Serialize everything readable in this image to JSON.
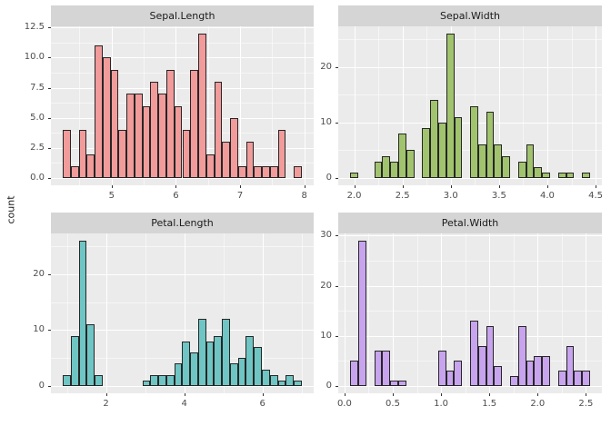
{
  "figure": {
    "y_axis_title": "count",
    "background": "#FFFFFF",
    "panel_background": "#EBEBEB",
    "strip_background": "#D5D5D5",
    "strip_text_color": "#1A1A1A",
    "grid_major_color": "#FFFFFF",
    "grid_minor_color": "rgba(255,255,255,0.55)",
    "tick_label_color": "#4D4D4D",
    "tick_mark_color": "#333333",
    "bar_border_color": "#262626",
    "legend": "none",
    "facet_layout": "2x2"
  },
  "chart_data": [
    {
      "type": "bar",
      "subtype": "histogram",
      "title": "Sepal.Length",
      "fill": "#F19B9B",
      "bin_start": 4.24,
      "bin_width": 0.124,
      "counts": [
        4,
        1,
        4,
        2,
        11,
        10,
        9,
        4,
        7,
        7,
        6,
        8,
        7,
        9,
        6,
        4,
        9,
        12,
        2,
        8,
        3,
        5,
        1,
        3,
        1,
        1,
        1,
        4,
        0,
        1
      ],
      "x_range": [
        4.054,
        8.146
      ],
      "x_ticks": [
        {
          "v": 5,
          "label": "5"
        },
        {
          "v": 6,
          "label": "6"
        },
        {
          "v": 7,
          "label": "7"
        },
        {
          "v": 8,
          "label": "8"
        }
      ],
      "x_minor": [
        4.5,
        5.5,
        6.5,
        7.5
      ],
      "y_range": [
        -0.6,
        12.6
      ],
      "y_ticks": [
        {
          "v": 0,
          "label": "0.0"
        },
        {
          "v": 2.5,
          "label": "2.5"
        },
        {
          "v": 5,
          "label": "5.0"
        },
        {
          "v": 7.5,
          "label": "7.5"
        },
        {
          "v": 10,
          "label": "10.0"
        },
        {
          "v": 12.5,
          "label": "12.5"
        }
      ],
      "y_minor": [
        1.25,
        3.75,
        6.25,
        8.75,
        11.25
      ]
    },
    {
      "type": "bar",
      "subtype": "histogram",
      "title": "Sepal.Width",
      "fill": "#A1C36E",
      "bin_start": 1.959,
      "bin_width": 0.0828,
      "counts": [
        1,
        0,
        0,
        3,
        4,
        3,
        8,
        5,
        0,
        9,
        14,
        10,
        26,
        11,
        0,
        13,
        6,
        12,
        6,
        4,
        0,
        3,
        6,
        2,
        1,
        0,
        1,
        1,
        0,
        1
      ],
      "x_range": [
        1.835,
        4.565
      ],
      "x_ticks": [
        {
          "v": 2.0,
          "label": "2.0"
        },
        {
          "v": 2.5,
          "label": "2.5"
        },
        {
          "v": 3.0,
          "label": "3.0"
        },
        {
          "v": 3.5,
          "label": "3.5"
        },
        {
          "v": 4.0,
          "label": "4.0"
        },
        {
          "v": 4.5,
          "label": "4.5"
        }
      ],
      "x_minor": [
        2.25,
        2.75,
        3.25,
        3.75,
        4.25
      ],
      "y_range": [
        -1.3,
        27.3
      ],
      "y_ticks": [
        {
          "v": 0,
          "label": "0"
        },
        {
          "v": 10,
          "label": "10"
        },
        {
          "v": 20,
          "label": "20"
        }
      ],
      "y_minor": [
        5,
        15,
        25
      ]
    },
    {
      "type": "bar",
      "subtype": "histogram",
      "title": "Petal.Length",
      "fill": "#6FC5C3",
      "bin_start": 0.898,
      "bin_width": 0.2034,
      "counts": [
        2,
        9,
        26,
        11,
        2,
        0,
        0,
        0,
        0,
        0,
        1,
        2,
        2,
        2,
        4,
        8,
        6,
        12,
        8,
        9,
        12,
        4,
        5,
        9,
        7,
        3,
        2,
        1,
        2,
        1
      ],
      "x_range": [
        0.593,
        7.307
      ],
      "x_ticks": [
        {
          "v": 2,
          "label": "2"
        },
        {
          "v": 4,
          "label": "4"
        },
        {
          "v": 6,
          "label": "6"
        }
      ],
      "x_minor": [
        1,
        3,
        5,
        7
      ],
      "y_range": [
        -1.3,
        27.3
      ],
      "y_ticks": [
        {
          "v": 0,
          "label": "0"
        },
        {
          "v": 10,
          "label": "10"
        },
        {
          "v": 20,
          "label": "20"
        }
      ],
      "y_minor": [
        5,
        15,
        25
      ]
    },
    {
      "type": "bar",
      "subtype": "histogram",
      "title": "Petal.Width",
      "fill": "#C8A4EE",
      "bin_start": 0.059,
      "bin_width": 0.0828,
      "counts": [
        5,
        29,
        0,
        7,
        7,
        1,
        1,
        0,
        0,
        0,
        0,
        7,
        3,
        5,
        0,
        13,
        8,
        12,
        4,
        0,
        2,
        12,
        5,
        6,
        6,
        0,
        3,
        8,
        3,
        3
      ],
      "x_range": [
        -0.065,
        2.666
      ],
      "x_ticks": [
        {
          "v": 0.0,
          "label": "0.0"
        },
        {
          "v": 0.5,
          "label": "0.5"
        },
        {
          "v": 1.0,
          "label": "1.0"
        },
        {
          "v": 1.5,
          "label": "1.5"
        },
        {
          "v": 2.0,
          "label": "2.0"
        },
        {
          "v": 2.5,
          "label": "2.5"
        }
      ],
      "x_minor": [
        0.25,
        0.75,
        1.25,
        1.75,
        2.25
      ],
      "y_range": [
        -1.45,
        30.45
      ],
      "y_ticks": [
        {
          "v": 0,
          "label": "0"
        },
        {
          "v": 10,
          "label": "10"
        },
        {
          "v": 20,
          "label": "20"
        },
        {
          "v": 30,
          "label": "30"
        }
      ],
      "y_minor": [
        5,
        15,
        25
      ]
    }
  ]
}
